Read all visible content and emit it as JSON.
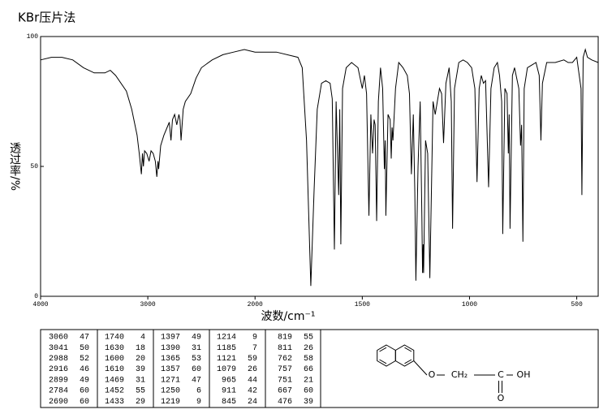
{
  "chart_data": {
    "type": "line",
    "title": "KBr压片法",
    "x_label": "波数/cm⁻¹",
    "y_label": "透过率/%",
    "color": "#000000",
    "xlim": [
      4000,
      400
    ],
    "xticks": [
      4000,
      3000,
      2000,
      1500,
      1000,
      500
    ],
    "x_scale_break": 2000,
    "x_scale_ratio": 2,
    "ylim": [
      0,
      100
    ],
    "yticks": [
      0,
      50,
      100
    ],
    "x": [
      4000,
      3900,
      3800,
      3700,
      3600,
      3500,
      3400,
      3350,
      3300,
      3200,
      3150,
      3100,
      3080,
      3060,
      3050,
      3041,
      3030,
      3010,
      2988,
      2970,
      2950,
      2930,
      2916,
      2905,
      2899,
      2880,
      2850,
      2820,
      2800,
      2784,
      2770,
      2750,
      2730,
      2710,
      2700,
      2690,
      2670,
      2650,
      2600,
      2550,
      2500,
      2400,
      2300,
      2200,
      2100,
      2000,
      1900,
      1800,
      1780,
      1760,
      1740,
      1725,
      1710,
      1690,
      1670,
      1650,
      1640,
      1630,
      1622,
      1610,
      1605,
      1600,
      1592,
      1575,
      1550,
      1520,
      1500,
      1490,
      1480,
      1469,
      1460,
      1452,
      1445,
      1440,
      1433,
      1425,
      1415,
      1405,
      1397,
      1393,
      1390,
      1380,
      1370,
      1365,
      1361,
      1357,
      1345,
      1330,
      1310,
      1290,
      1280,
      1271,
      1262,
      1255,
      1250,
      1240,
      1230,
      1222,
      1219,
      1216,
      1214,
      1205,
      1195,
      1185,
      1170,
      1160,
      1140,
      1130,
      1121,
      1110,
      1095,
      1085,
      1079,
      1070,
      1050,
      1030,
      1010,
      990,
      975,
      965,
      955,
      945,
      935,
      925,
      911,
      900,
      885,
      870,
      860,
      850,
      845,
      835,
      825,
      819,
      815,
      811,
      800,
      790,
      770,
      762,
      757,
      751,
      745,
      730,
      710,
      690,
      675,
      667,
      660,
      640,
      600,
      560,
      540,
      520,
      500,
      490,
      480,
      476,
      470,
      460,
      450,
      430,
      400
    ],
    "values": [
      91,
      92,
      92,
      91,
      88,
      86,
      86,
      87,
      85,
      79,
      72,
      62,
      55,
      47,
      55,
      50,
      56,
      55,
      52,
      56,
      55,
      52,
      46,
      52,
      49,
      58,
      62,
      65,
      67,
      60,
      68,
      70,
      66,
      70,
      68,
      60,
      72,
      75,
      78,
      84,
      88,
      91,
      93,
      94,
      95,
      94,
      94,
      92,
      88,
      60,
      4,
      40,
      72,
      82,
      83,
      82,
      76,
      18,
      75,
      39,
      72,
      20,
      80,
      88,
      90,
      88,
      80,
      85,
      78,
      31,
      70,
      55,
      68,
      66,
      29,
      75,
      88,
      80,
      49,
      60,
      31,
      70,
      68,
      53,
      65,
      60,
      80,
      90,
      88,
      85,
      78,
      47,
      70,
      40,
      6,
      50,
      75,
      30,
      9,
      20,
      9,
      60,
      55,
      7,
      75,
      70,
      80,
      78,
      59,
      82,
      88,
      75,
      26,
      80,
      90,
      91,
      90,
      88,
      80,
      44,
      80,
      85,
      82,
      83,
      42,
      80,
      88,
      90,
      85,
      75,
      24,
      80,
      78,
      55,
      70,
      26,
      85,
      88,
      80,
      58,
      66,
      21,
      80,
      88,
      89,
      90,
      85,
      60,
      82,
      90,
      90,
      91,
      90,
      90,
      92,
      86,
      80,
      39,
      92,
      95,
      92,
      91,
      90
    ]
  },
  "peak_table": {
    "rows": [
      [
        3060,
        47,
        1740,
        4,
        1397,
        49,
        1214,
        9,
        819,
        55
      ],
      [
        3041,
        50,
        1630,
        18,
        1390,
        31,
        1185,
        7,
        811,
        26
      ],
      [
        2988,
        52,
        1600,
        20,
        1365,
        53,
        1121,
        59,
        762,
        58
      ],
      [
        2916,
        46,
        1610,
        39,
        1357,
        60,
        1079,
        26,
        757,
        66
      ],
      [
        2899,
        49,
        1469,
        31,
        1271,
        47,
        965,
        44,
        751,
        21
      ],
      [
        2784,
        60,
        1452,
        55,
        1250,
        6,
        911,
        42,
        667,
        60
      ],
      [
        2690,
        60,
        1433,
        29,
        1219,
        9,
        845,
        24,
        476,
        39
      ]
    ]
  },
  "structure": {
    "labels": [
      "O",
      "CH₂",
      "C",
      "OH",
      "O"
    ]
  }
}
